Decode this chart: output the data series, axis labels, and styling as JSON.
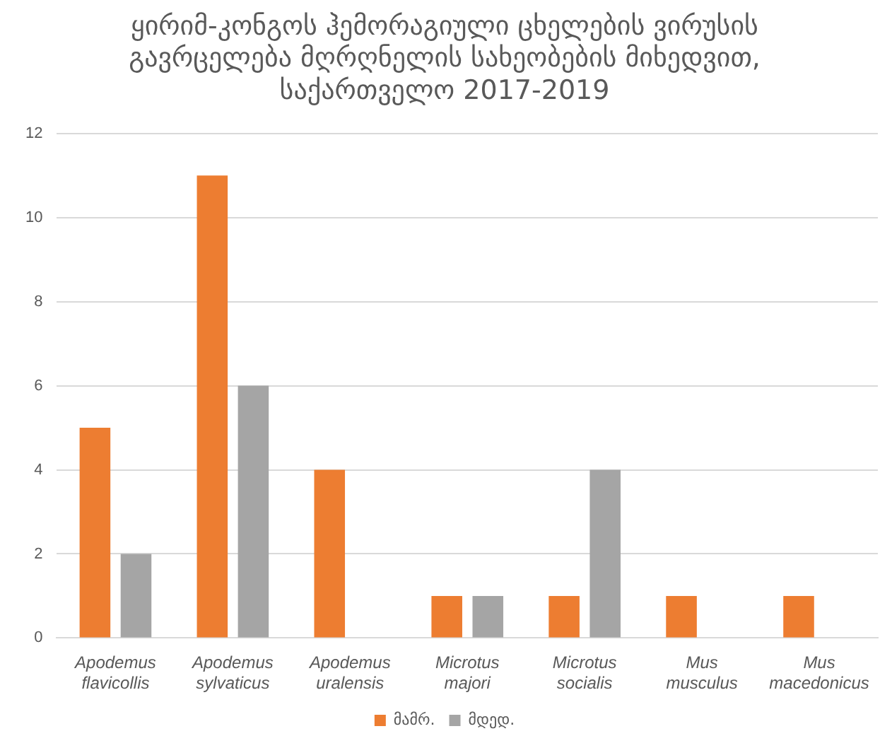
{
  "chart_data": {
    "type": "bar",
    "title": "ყირიმ-კონგოს ჰემორაგიული ცხელების ვირუსის გავრცელება მღრღნელის სახეობების მიხედვით, საქართველო 2017-2019",
    "categories": [
      "Apodemus flavicollis",
      "Apodemus sylvaticus",
      "Apodemus uralensis",
      "Microtus majori",
      "Microtus socialis",
      "Mus musculus",
      "Mus macedonicus"
    ],
    "series": [
      {
        "name": "მამრ.",
        "color": "#ed7d31",
        "values": [
          5,
          11,
          4,
          1,
          1,
          1,
          1
        ]
      },
      {
        "name": "მდედ.",
        "color": "#a5a5a5",
        "values": [
          2,
          6,
          0,
          1,
          4,
          0,
          0
        ]
      }
    ],
    "ylim": [
      0,
      12
    ],
    "yticks": [
      0,
      2,
      4,
      6,
      8,
      10,
      12
    ],
    "grid": "y",
    "legend": "bottom"
  }
}
